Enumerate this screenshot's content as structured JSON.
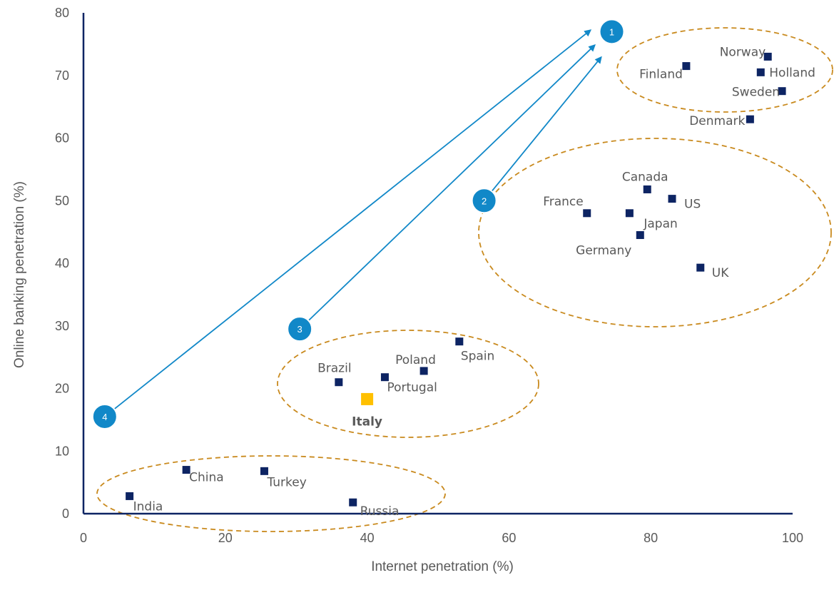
{
  "chart_data": {
    "type": "scatter",
    "xlabel": "Internet penetration (%)",
    "ylabel": "Online banking penetration (%)",
    "xlim": [
      0,
      100
    ],
    "ylim": [
      0,
      80
    ],
    "x_ticks": [
      "0",
      "20",
      "40",
      "60",
      "80",
      "100"
    ],
    "y_ticks": [
      "0",
      "10",
      "20",
      "30",
      "40",
      "50",
      "60",
      "70",
      "80"
    ],
    "grid": false,
    "colors": {
      "point": "#0d2463",
      "highlight": "#ffc000",
      "cluster": "#c98a1e",
      "badge": "#1188c8",
      "axis": "#0d2463"
    },
    "points": [
      {
        "label": "Norway",
        "x": 96.5,
        "y": 73.0
      },
      {
        "label": "Finland",
        "x": 85.0,
        "y": 71.5
      },
      {
        "label": "Holland",
        "x": 95.5,
        "y": 70.5
      },
      {
        "label": "Sweden",
        "x": 98.5,
        "y": 67.5
      },
      {
        "label": "Denmark",
        "x": 94.0,
        "y": 63.0
      },
      {
        "label": "Canada",
        "x": 79.5,
        "y": 51.8
      },
      {
        "label": "US",
        "x": 83.0,
        "y": 50.3
      },
      {
        "label": "France",
        "x": 71.0,
        "y": 48.0
      },
      {
        "label": "Japan",
        "x": 77.0,
        "y": 48.0
      },
      {
        "label": "Germany",
        "x": 78.5,
        "y": 44.5
      },
      {
        "label": "UK",
        "x": 87.0,
        "y": 39.3
      },
      {
        "label": "Spain",
        "x": 53.0,
        "y": 27.5
      },
      {
        "label": "Poland",
        "x": 48.0,
        "y": 22.8
      },
      {
        "label": "Portugal",
        "x": 42.5,
        "y": 21.8
      },
      {
        "label": "Brazil",
        "x": 36.0,
        "y": 21.0
      },
      {
        "label": "Italy",
        "x": 40.0,
        "y": 18.3,
        "highlight": true
      },
      {
        "label": "China",
        "x": 14.5,
        "y": 7.0
      },
      {
        "label": "Turkey",
        "x": 25.5,
        "y": 6.8
      },
      {
        "label": "India",
        "x": 6.5,
        "y": 2.8
      },
      {
        "label": "Russia",
        "x": 38.0,
        "y": 1.8
      }
    ],
    "badges": [
      {
        "label": "1",
        "x": 74.5,
        "y": 77.0
      },
      {
        "label": "2",
        "x": 56.5,
        "y": 50.0
      },
      {
        "label": "3",
        "x": 30.5,
        "y": 29.5
      },
      {
        "label": "4",
        "x": 3.0,
        "y": 15.5
      }
    ],
    "arrows": [
      {
        "from": "4",
        "to": "1"
      },
      {
        "from": "3",
        "to": "1"
      },
      {
        "from": "2",
        "to": "1"
      }
    ]
  }
}
